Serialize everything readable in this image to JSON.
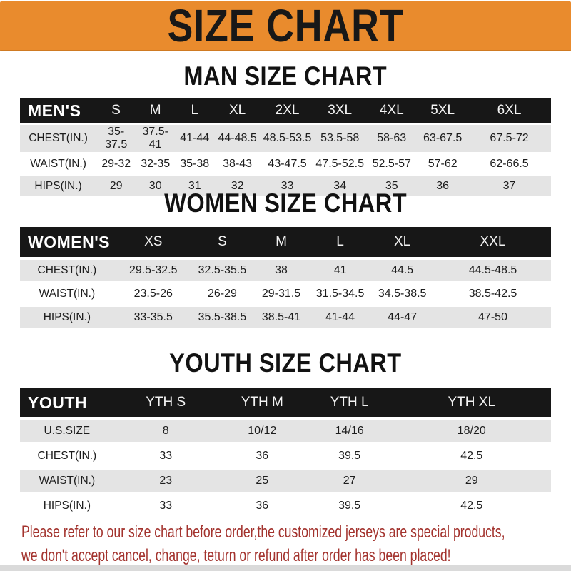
{
  "banner": {
    "title": "SIZE CHART"
  },
  "colors": {
    "banner_bg": "#E98B2D",
    "header_band_bg": "#171717",
    "row_stripe": "#E4E4E4",
    "footer_text": "#A3332E"
  },
  "sections": [
    {
      "title": "MAN SIZE CHART",
      "corner_label": "MEN'S",
      "columns": [
        "S",
        "M",
        "L",
        "XL",
        "2XL",
        "3XL",
        "4XL",
        "5XL",
        "6XL"
      ],
      "rows": [
        {
          "label": "CHEST(IN.)",
          "values": [
            "35-37.5",
            "37.5-41",
            "41-44",
            "44-48.5",
            "48.5-53.5",
            "53.5-58",
            "58-63",
            "63-67.5",
            "67.5-72"
          ]
        },
        {
          "label": "WAIST(IN.)",
          "values": [
            "29-32",
            "32-35",
            "35-38",
            "38-43",
            "43-47.5",
            "47.5-52.5",
            "52.5-57",
            "57-62",
            "62-66.5"
          ]
        },
        {
          "label": "HIPS(IN.)",
          "values": [
            "29",
            "30",
            "31",
            "32",
            "33",
            "34",
            "35",
            "36",
            "37"
          ]
        }
      ]
    },
    {
      "title": "WOMEN SIZE CHART",
      "corner_label": "WOMEN'S",
      "columns": [
        "XS",
        "S",
        "M",
        "L",
        "XL",
        "XXL"
      ],
      "rows": [
        {
          "label": "CHEST(IN.)",
          "values": [
            "29.5-32.5",
            "32.5-35.5",
            "38",
            "41",
            "44.5",
            "44.5-48.5"
          ]
        },
        {
          "label": "WAIST(IN.)",
          "values": [
            "23.5-26",
            "26-29",
            "29-31.5",
            "31.5-34.5",
            "34.5-38.5",
            "38.5-42.5"
          ]
        },
        {
          "label": "HIPS(IN.)",
          "values": [
            "33-35.5",
            "35.5-38.5",
            "38.5-41",
            "41-44",
            "44-47",
            "47-50"
          ]
        }
      ]
    },
    {
      "title": "YOUTH SIZE CHART",
      "corner_label": "YOUTH",
      "columns": [
        "YTH S",
        "YTH M",
        "YTH L",
        "YTH XL"
      ],
      "rows": [
        {
          "label": "U.S.SIZE",
          "values": [
            "8",
            "10/12",
            "14/16",
            "18/20"
          ]
        },
        {
          "label": "CHEST(IN.)",
          "values": [
            "33",
            "36",
            "39.5",
            "42.5"
          ]
        },
        {
          "label": "WAIST(IN.)",
          "values": [
            "23",
            "25",
            "27",
            "29"
          ]
        },
        {
          "label": "HIPS(IN.)",
          "values": [
            "33",
            "36",
            "39.5",
            "42.5"
          ]
        }
      ]
    }
  ],
  "footer": {
    "line1": "Please refer to our size chart before order,the customized jerseys are special products,",
    "line2": "we don't accept cancel, change, teturn or refund after order has been placed!"
  }
}
